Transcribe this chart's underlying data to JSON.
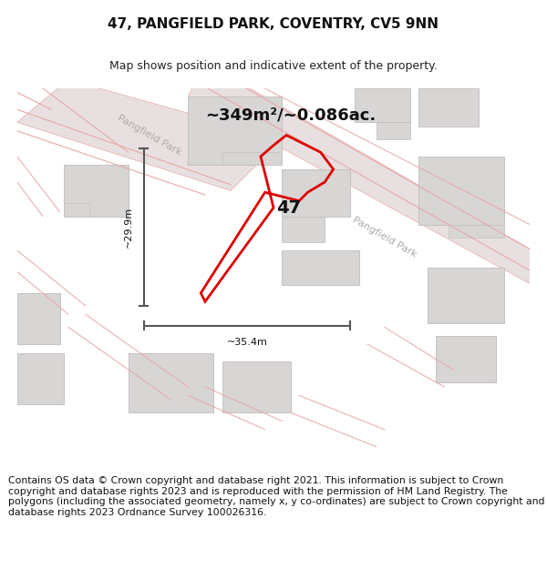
{
  "title": "47, PANGFIELD PARK, COVENTRY, CV5 9NN",
  "subtitle": "Map shows position and indicative extent of the property.",
  "area_label": "~349m²/~0.086ac.",
  "width_label": "~35.4m",
  "height_label": "~29.9m",
  "property_number": "47",
  "footer_text": "Contains OS data © Crown copyright and database right 2021. This information is subject to Crown copyright and database rights 2023 and is reproduced with the permission of HM Land Registry. The polygons (including the associated geometry, namely x, y co-ordinates) are subject to Crown copyright and database rights 2023 Ordnance Survey 100026316.",
  "map_bg": "#f2f0f0",
  "road_fill": "#e8e0e0",
  "road_line": "#e8a8a8",
  "bld_fill": "#d8d5d5",
  "bld_stroke": "#c0bcbc",
  "road_label_color": "#b0aaaa",
  "prop_color": "#dd0000",
  "dim_color": "#555555",
  "title_fontsize": 11,
  "subtitle_fontsize": 9,
  "area_fontsize": 13,
  "num_fontsize": 14,
  "road_label_fontsize": 8,
  "dim_fontsize": 8,
  "footer_fontsize": 7.8
}
